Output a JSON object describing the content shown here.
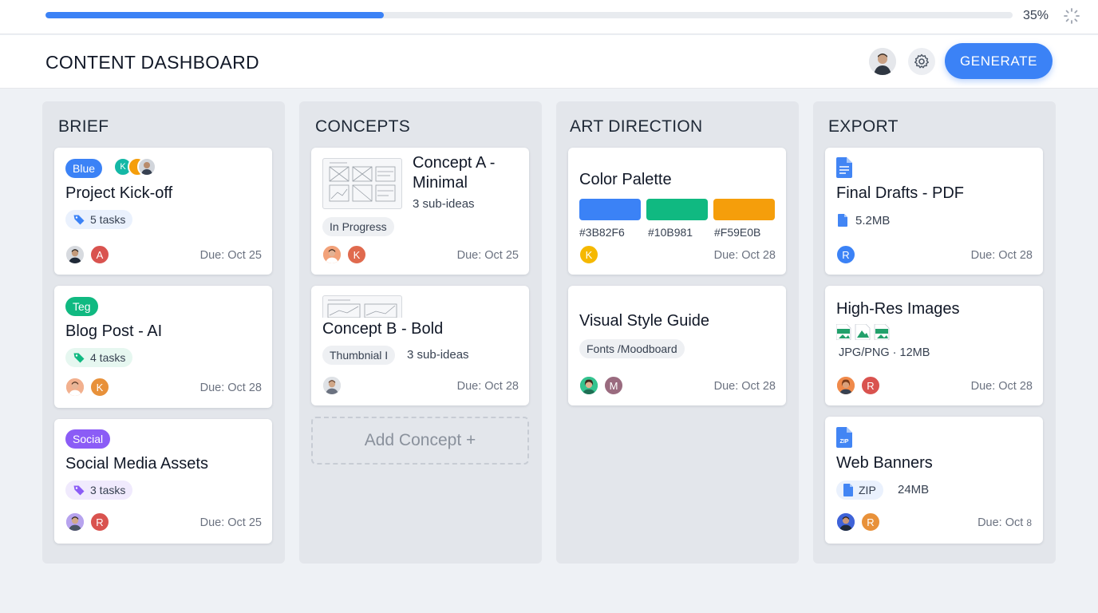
{
  "progress": {
    "percent_label": "35%",
    "fraction": 0.35,
    "color": "#3b82f6"
  },
  "header": {
    "title": "CONTENT DASHBOARD",
    "generate_label": "GENERATE",
    "accent": "#3b82f6"
  },
  "columns": [
    {
      "title": "BRIEF",
      "cards": [
        {
          "tag": "Blue",
          "tag_color": "#3b82f6",
          "title": "Project Kick-off",
          "tasks": "5 tasks",
          "tasks_color": "#3b82f6",
          "due": "Due: Oct 25",
          "avatars": [
            "",
            "A"
          ],
          "mini_avatars": [
            "K"
          ]
        },
        {
          "tag": "Teg",
          "tag_color": "#10b981",
          "title": "Blog Post - AI",
          "tasks": "4 tasks",
          "tasks_color": "#10b981",
          "due": "Due: Oct 28",
          "avatars": [
            "",
            "K"
          ]
        },
        {
          "tag": "Social",
          "tag_color": "#8b5cf6",
          "title": "Social Media Assets",
          "tasks": "3 tasks",
          "tasks_color": "#8b5cf6",
          "due": "Due: Oct 25",
          "avatars": [
            "",
            "R"
          ]
        }
      ]
    },
    {
      "title": "CONCEPTS",
      "cards": [
        {
          "title_line1": "Concept A -",
          "title_line2": "Minimal",
          "sub_ideas": "3 sub-ideas",
          "status": "In Progress",
          "due": "Due: Oct 25",
          "avatars": [
            "",
            "K"
          ]
        },
        {
          "title": "Concept B - Bold",
          "status": "Thumbnial I",
          "sub_ideas": "3 sub-ideas",
          "due": "Due: Oct 28",
          "avatars": [
            ""
          ]
        }
      ],
      "add_label": "Add Concept +"
    },
    {
      "title": "ART DIRECTION",
      "cards": [
        {
          "title": "Color Palette",
          "swatches": [
            "#3B82F6",
            "#10B981",
            "#F59E0B"
          ],
          "swatch_labels": [
            "#3B82F6",
            "#10B981",
            "#F59E0B"
          ],
          "due": "Due: Oct 28",
          "avatars": [
            "K"
          ]
        },
        {
          "title": "Visual Style Guide",
          "chip": "Fonts /Moodboard",
          "due": "Due: Oct 28",
          "avatars": [
            "",
            "M"
          ]
        }
      ]
    },
    {
      "title": "EXPORT",
      "cards": [
        {
          "title": "Final Drafts - PDF",
          "file_info": "5.2MB",
          "due": "Due: Oct 28",
          "avatars": [
            "R"
          ]
        },
        {
          "title": "High-Res Images",
          "file_info": "JPG/PNG · 12MB",
          "due": "Due: Oct 28",
          "avatars": [
            "",
            "R"
          ]
        },
        {
          "title": "Web Banners",
          "file_type": "ZIP",
          "file_size": "24MB",
          "due": "Due: Oct ",
          "due_suffix": "8",
          "avatars": [
            "",
            "R"
          ]
        }
      ]
    }
  ]
}
